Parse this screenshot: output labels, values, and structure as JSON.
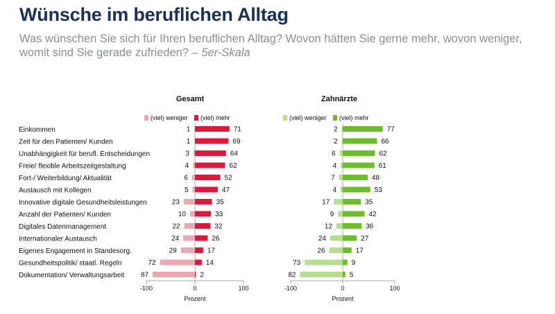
{
  "header": {
    "title": "Wünsche im beruflichen Alltag",
    "subtitle_main": "Was wünschen Sie sich für Ihren beruflichen Alltag? Wovon hätten Sie gerne mehr, wovon weniger, womit sind Sie gerade zufrieden? –",
    "subtitle_scale": "5er-Skala"
  },
  "colors": {
    "title": "#1b2f5b",
    "gesamt_mehr": "#e0173a",
    "gesamt_weniger": "#eea7b0",
    "zahn_mehr": "#6cbd2a",
    "zahn_weniger": "#b5df8c"
  },
  "chart_data": [
    {
      "type": "bar",
      "title": "Gesamt",
      "xlabel": "Prozent",
      "xlim": [
        -100,
        100
      ],
      "xticks": [
        "-100",
        "0",
        "100"
      ],
      "legend_placement": "top",
      "categories": [
        "Einkommen",
        "Zeit für den Patienten/ Kunden",
        "Unabhängigkeit für berufl. Entscheidungen",
        "Freie/ flexible Arbeitszeitgestaltung",
        "Fort-/ Weiterbildung/ Aktualität",
        "Austausch mit Kollegen",
        "Innovative digitale Gesundheitsleistungen",
        "Anzahl der Patienten/ Kunden",
        "Digitales Datenmanagement",
        "Internationaler Austausch",
        "Eigenes Engagement in Standesorg.",
        "Gesundheitspolitik/ staatl. Regeln",
        "Dokumentation/ Verwaltungsarbeit"
      ],
      "series": [
        {
          "name": "(viel) weniger",
          "values": [
            1,
            1,
            3,
            4,
            6,
            5,
            23,
            10,
            22,
            24,
            29,
            72,
            87
          ]
        },
        {
          "name": "(viel) mehr",
          "values": [
            71,
            69,
            64,
            62,
            52,
            47,
            35,
            33,
            32,
            26,
            17,
            14,
            2
          ]
        }
      ]
    },
    {
      "type": "bar",
      "title": "Zahnärzte",
      "xlabel": "Prozent",
      "xlim": [
        -100,
        100
      ],
      "xticks": [
        "-100",
        "0",
        "100"
      ],
      "legend_placement": "top",
      "series": [
        {
          "name": "(viel) weniger",
          "values": [
            2,
            2,
            6,
            4,
            7,
            4,
            17,
            9,
            12,
            24,
            26,
            73,
            82
          ]
        },
        {
          "name": "(viel) mehr",
          "values": [
            77,
            66,
            62,
            61,
            48,
            53,
            35,
            42,
            36,
            27,
            17,
            9,
            5
          ]
        }
      ]
    }
  ]
}
